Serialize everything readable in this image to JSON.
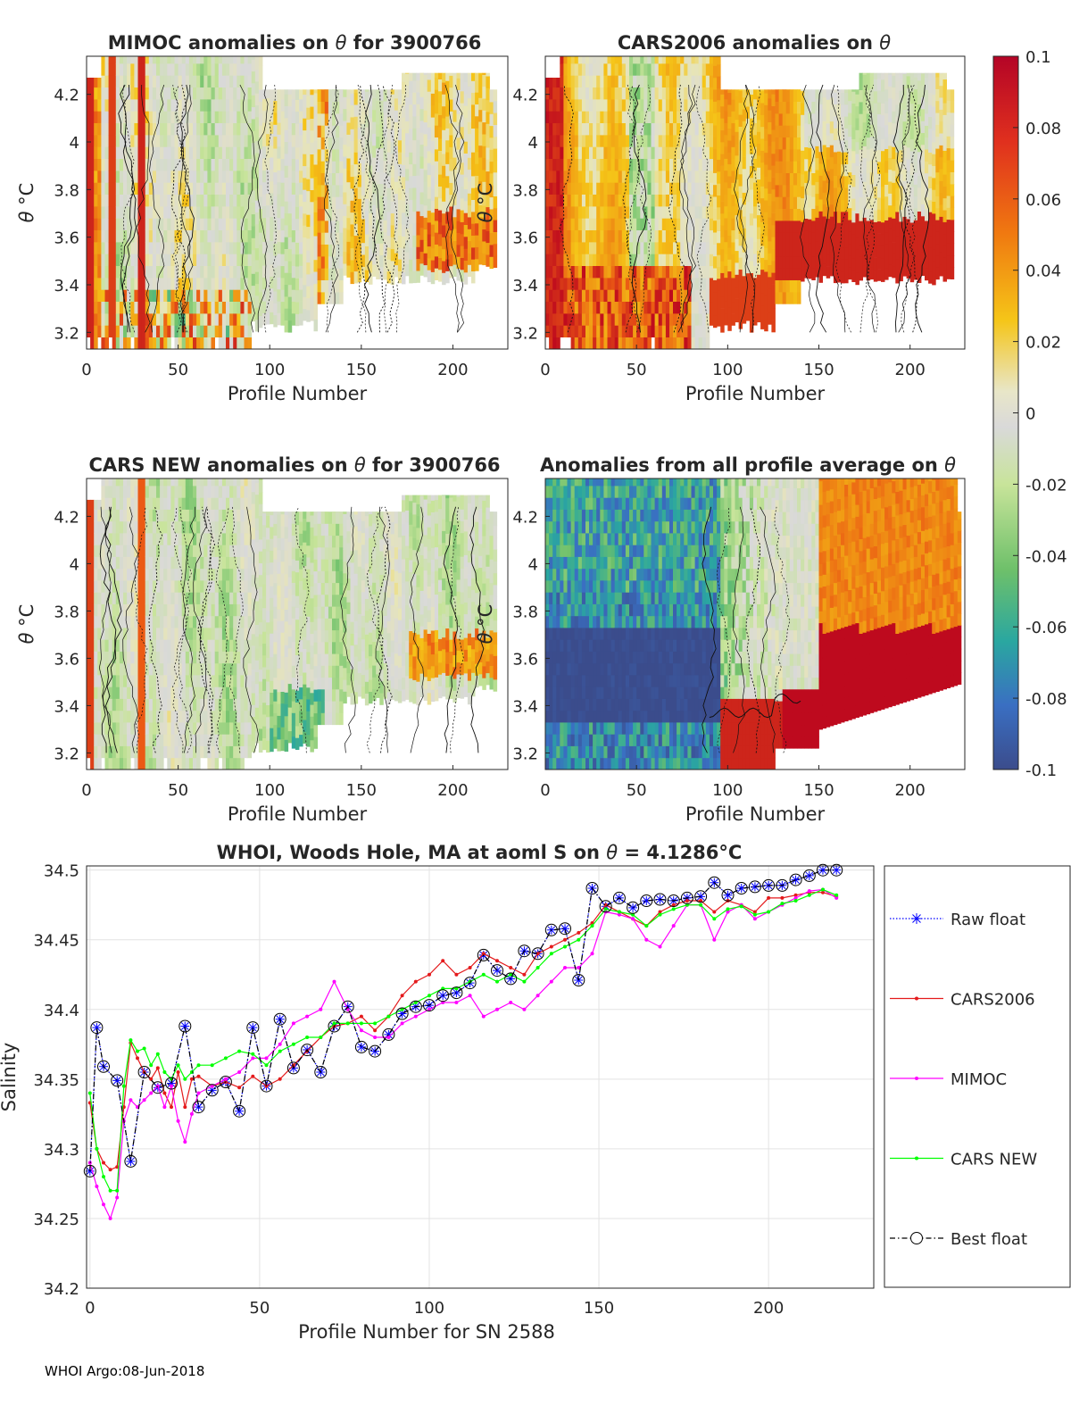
{
  "footer": "WHOI Argo:08-Jun-2018",
  "colorbar": {
    "ticks": [
      "0.1",
      "0.08",
      "0.06",
      "0.04",
      "0.02",
      "0",
      "-0.02",
      "-0.04",
      "-0.06",
      "-0.08",
      "-0.1"
    ],
    "min": -0.1,
    "max": 0.1
  },
  "chart_data": [
    {
      "type": "heatmap",
      "title_prefix": "MIMOC anomalies on",
      "title_symbol": "θ",
      "title_suffix": " for 3900766",
      "xlabel": "Profile Number",
      "ylabel_symbol": "θ",
      "ylabel_unit": "°C",
      "xlim": [
        0,
        230
      ],
      "ylim": [
        3.13,
        4.36
      ],
      "xticks": [
        "0",
        "50",
        "100",
        "150",
        "200"
      ],
      "yticks": [
        "3.2",
        "3.4",
        "3.6",
        "3.8",
        "4",
        "4.2"
      ],
      "pattern": "mimoc"
    },
    {
      "type": "heatmap",
      "title_prefix": "CARS2006 anomalies on",
      "title_symbol": "θ",
      "title_suffix": "",
      "xlabel": "Profile Number",
      "ylabel_symbol": "θ",
      "ylabel_unit": "°C",
      "xlim": [
        0,
        230
      ],
      "ylim": [
        3.13,
        4.36
      ],
      "xticks": [
        "0",
        "50",
        "100",
        "150",
        "200"
      ],
      "yticks": [
        "3.2",
        "3.4",
        "3.6",
        "3.8",
        "4",
        "4.2"
      ],
      "pattern": "cars2006"
    },
    {
      "type": "heatmap",
      "title_prefix": "CARS NEW anomalies on",
      "title_symbol": "θ",
      "title_suffix": " for 3900766",
      "xlabel": "Profile Number",
      "ylabel_symbol": "θ",
      "ylabel_unit": "°C",
      "xlim": [
        0,
        230
      ],
      "ylim": [
        3.13,
        4.36
      ],
      "xticks": [
        "0",
        "50",
        "100",
        "150",
        "200"
      ],
      "yticks": [
        "3.2",
        "3.4",
        "3.6",
        "3.8",
        "4",
        "4.2"
      ],
      "pattern": "carsnew"
    },
    {
      "type": "heatmap",
      "title_prefix": "Anomalies from all profile average on",
      "title_symbol": "θ",
      "title_suffix": "",
      "xlabel": "Profile Number",
      "ylabel_symbol": "θ",
      "ylabel_unit": "°C",
      "xlim": [
        0,
        230
      ],
      "ylim": [
        3.13,
        4.36
      ],
      "xticks": [
        "0",
        "50",
        "100",
        "150",
        "200"
      ],
      "yticks": [
        "3.2",
        "3.4",
        "3.6",
        "3.8",
        "4",
        "4.2"
      ],
      "pattern": "average"
    },
    {
      "type": "line",
      "title_prefix": "WHOI, Woods Hole, MA at aoml S on",
      "title_symbol": "θ",
      "title_value": " = 4.1286",
      "title_unit": "°C",
      "xlabel": "Profile Number for SN 2588",
      "ylabel": "Salinity",
      "xlim": [
        -1,
        231
      ],
      "ylim": [
        34.2,
        34.503
      ],
      "xticks": [
        0,
        50,
        100,
        150,
        200
      ],
      "yticks": [
        "34.2",
        "34.25",
        "34.3",
        "34.35",
        "34.4",
        "34.45",
        "34.5"
      ],
      "grid": true,
      "legend": "outside-right",
      "series": [
        {
          "name": "Raw float",
          "color": "#0000ff",
          "style": "dotted-star",
          "x": [
            0,
            2,
            4,
            8,
            12,
            16,
            20,
            24,
            28,
            32,
            36,
            40,
            44,
            48,
            52,
            56,
            60,
            64,
            68,
            72,
            76,
            80,
            84,
            88,
            92,
            96,
            100,
            104,
            108,
            112,
            116,
            120,
            124,
            128,
            132,
            136,
            140,
            144,
            148,
            152,
            156,
            160,
            164,
            168,
            172,
            176,
            180,
            184,
            188,
            192,
            196,
            200,
            204,
            208,
            212,
            216,
            220
          ],
          "y": [
            34.284,
            34.387,
            34.359,
            34.349,
            34.291,
            34.355,
            34.344,
            34.347,
            34.388,
            34.33,
            34.342,
            34.348,
            34.327,
            34.387,
            34.345,
            34.393,
            34.358,
            34.371,
            34.355,
            34.388,
            34.402,
            34.373,
            34.37,
            34.382,
            34.397,
            34.402,
            34.403,
            34.41,
            34.412,
            34.419,
            34.439,
            34.428,
            34.422,
            34.442,
            34.44,
            34.457,
            34.458,
            34.421,
            34.487,
            34.474,
            34.48,
            34.473,
            34.478,
            34.479,
            34.478,
            34.48,
            34.481,
            34.491,
            34.482,
            34.487,
            34.488,
            34.489,
            34.489,
            34.493,
            34.496,
            34.5,
            34.5
          ]
        },
        {
          "name": "CARS2006",
          "color": "#e41a1c",
          "style": "line-dot",
          "x": [
            0,
            2,
            4,
            6,
            8,
            10,
            12,
            14,
            16,
            18,
            20,
            22,
            24,
            26,
            28,
            30,
            32,
            36,
            40,
            44,
            48,
            52,
            56,
            60,
            64,
            68,
            72,
            76,
            80,
            84,
            88,
            92,
            96,
            100,
            104,
            108,
            112,
            116,
            120,
            124,
            128,
            132,
            136,
            140,
            144,
            148,
            152,
            156,
            160,
            164,
            168,
            172,
            176,
            180,
            184,
            188,
            192,
            196,
            200,
            204,
            208,
            212,
            216,
            220
          ],
          "y": [
            34.333,
            34.3,
            34.29,
            34.285,
            34.287,
            34.33,
            34.376,
            34.365,
            34.355,
            34.35,
            34.358,
            34.34,
            34.33,
            34.355,
            34.33,
            34.35,
            34.352,
            34.345,
            34.348,
            34.344,
            34.352,
            34.345,
            34.35,
            34.36,
            34.37,
            34.38,
            34.388,
            34.39,
            34.395,
            34.385,
            34.395,
            34.41,
            34.42,
            34.425,
            34.435,
            34.425,
            34.43,
            34.44,
            34.435,
            34.43,
            34.425,
            34.44,
            34.445,
            34.45,
            34.455,
            34.462,
            34.475,
            34.47,
            34.465,
            34.46,
            34.47,
            34.475,
            34.478,
            34.478,
            34.47,
            34.478,
            34.475,
            34.47,
            34.48,
            34.48,
            34.482,
            34.484,
            34.484,
            34.481
          ]
        },
        {
          "name": "MIMOC",
          "color": "#ff00ff",
          "style": "line-dot",
          "x": [
            0,
            2,
            4,
            6,
            8,
            10,
            12,
            14,
            16,
            18,
            20,
            22,
            24,
            26,
            28,
            30,
            32,
            36,
            40,
            44,
            48,
            52,
            56,
            60,
            64,
            68,
            72,
            76,
            80,
            84,
            88,
            92,
            96,
            100,
            104,
            108,
            112,
            116,
            120,
            124,
            128,
            132,
            136,
            140,
            144,
            148,
            152,
            156,
            160,
            164,
            168,
            172,
            176,
            180,
            184,
            188,
            192,
            196,
            200,
            204,
            208,
            212,
            216,
            220
          ],
          "y": [
            34.29,
            34.273,
            34.26,
            34.25,
            34.265,
            34.32,
            34.335,
            34.33,
            34.335,
            34.34,
            34.345,
            34.33,
            34.345,
            34.32,
            34.305,
            34.325,
            34.34,
            34.345,
            34.35,
            34.355,
            34.365,
            34.365,
            34.375,
            34.39,
            34.395,
            34.4,
            34.42,
            34.4,
            34.385,
            34.38,
            34.38,
            34.39,
            34.395,
            34.4,
            34.405,
            34.405,
            34.41,
            34.395,
            34.4,
            34.405,
            34.4,
            34.41,
            34.42,
            34.43,
            34.43,
            34.44,
            34.47,
            34.468,
            34.465,
            34.45,
            34.445,
            34.46,
            34.475,
            34.475,
            34.45,
            34.47,
            34.475,
            34.465,
            34.47,
            34.475,
            34.48,
            34.485,
            34.486,
            34.48
          ]
        },
        {
          "name": "CARS NEW",
          "color": "#00ff00",
          "style": "line-dot",
          "x": [
            0,
            2,
            4,
            6,
            8,
            10,
            12,
            14,
            16,
            18,
            20,
            22,
            24,
            26,
            28,
            30,
            32,
            36,
            40,
            44,
            48,
            52,
            56,
            60,
            64,
            68,
            72,
            76,
            80,
            84,
            88,
            92,
            96,
            100,
            104,
            108,
            112,
            116,
            120,
            124,
            128,
            132,
            136,
            140,
            144,
            148,
            152,
            156,
            160,
            164,
            168,
            172,
            176,
            180,
            184,
            188,
            192,
            196,
            200,
            204,
            208,
            212,
            216,
            220
          ],
          "y": [
            34.34,
            34.3,
            34.28,
            34.27,
            34.27,
            34.345,
            34.378,
            34.37,
            34.372,
            34.36,
            34.368,
            34.355,
            34.35,
            34.36,
            34.35,
            34.355,
            34.36,
            34.36,
            34.365,
            34.37,
            34.368,
            34.36,
            34.37,
            34.375,
            34.38,
            34.38,
            34.39,
            34.39,
            34.39,
            34.39,
            34.395,
            34.4,
            34.405,
            34.41,
            34.415,
            34.415,
            34.42,
            34.425,
            34.42,
            34.425,
            34.42,
            34.43,
            34.44,
            34.445,
            34.45,
            34.46,
            34.472,
            34.47,
            34.468,
            34.46,
            34.468,
            34.472,
            34.475,
            34.475,
            34.465,
            34.472,
            34.474,
            34.468,
            34.47,
            34.476,
            34.478,
            34.482,
            34.486,
            34.482
          ]
        },
        {
          "name": "Best float",
          "color": "#000000",
          "style": "dashdot-circle",
          "x": [
            0,
            2,
            4,
            8,
            12,
            16,
            20,
            24,
            28,
            32,
            36,
            40,
            44,
            48,
            52,
            56,
            60,
            64,
            68,
            72,
            76,
            80,
            84,
            88,
            92,
            96,
            100,
            104,
            108,
            112,
            116,
            120,
            124,
            128,
            132,
            136,
            140,
            144,
            148,
            152,
            156,
            160,
            164,
            168,
            172,
            176,
            180,
            184,
            188,
            192,
            196,
            200,
            204,
            208,
            212,
            216,
            220
          ],
          "y": [
            34.284,
            34.387,
            34.359,
            34.349,
            34.291,
            34.355,
            34.344,
            34.347,
            34.388,
            34.33,
            34.342,
            34.348,
            34.327,
            34.387,
            34.345,
            34.393,
            34.358,
            34.371,
            34.355,
            34.388,
            34.402,
            34.373,
            34.37,
            34.382,
            34.397,
            34.402,
            34.403,
            34.41,
            34.412,
            34.419,
            34.439,
            34.428,
            34.422,
            34.442,
            34.44,
            34.457,
            34.458,
            34.421,
            34.487,
            34.474,
            34.48,
            34.473,
            34.478,
            34.479,
            34.478,
            34.48,
            34.481,
            34.491,
            34.482,
            34.487,
            34.488,
            34.489,
            34.489,
            34.493,
            34.496,
            34.5,
            34.5
          ]
        }
      ]
    }
  ]
}
